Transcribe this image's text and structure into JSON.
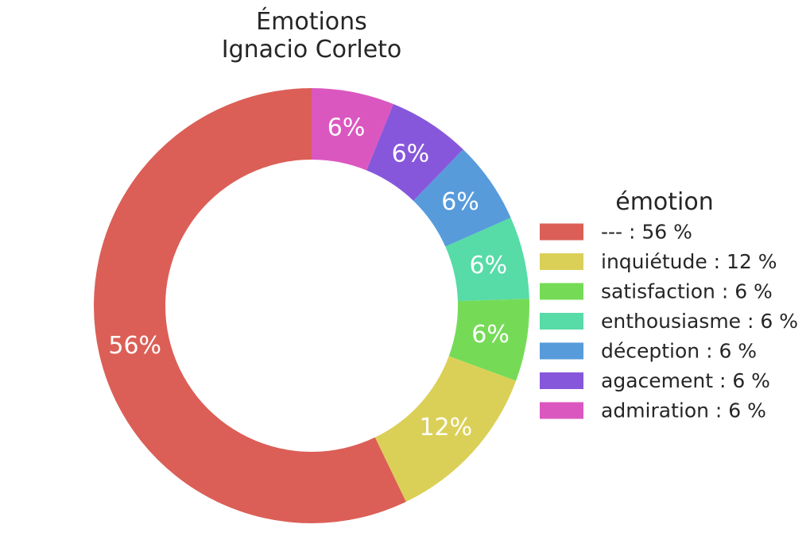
{
  "chart_data": {
    "type": "pie",
    "donut": true,
    "title_lines": [
      "Émotions",
      "Ignacio Corleto"
    ],
    "slices": [
      {
        "label": "---",
        "value": 56,
        "pct_label": "56%",
        "legend_label": "--- : 56 %",
        "color": "#DB5F57"
      },
      {
        "label": "inquiétude",
        "value": 12,
        "pct_label": "12%",
        "legend_label": "inquiétude : 12 %",
        "color": "#DBD057"
      },
      {
        "label": "satisfaction",
        "value": 6,
        "pct_label": "6%",
        "legend_label": "satisfaction : 6 %",
        "color": "#75DB57"
      },
      {
        "label": "enthousiasme",
        "value": 6,
        "pct_label": "6%",
        "legend_label": "enthousiasme : 6 %",
        "color": "#57DBA7"
      },
      {
        "label": "déception",
        "value": 6,
        "pct_label": "6%",
        "legend_label": "déception : 6 %",
        "color": "#579BDB"
      },
      {
        "label": "agacement",
        "value": 6,
        "pct_label": "6%",
        "legend_label": "agacement : 6 %",
        "color": "#8757DB"
      },
      {
        "label": "admiration",
        "value": 6,
        "pct_label": "6%",
        "legend_label": "admiration : 6 %",
        "color": "#DB57C0"
      }
    ],
    "start_angle": 90,
    "direction": "counterclockwise",
    "legend": {
      "title": "émotion",
      "placement": "right"
    }
  }
}
